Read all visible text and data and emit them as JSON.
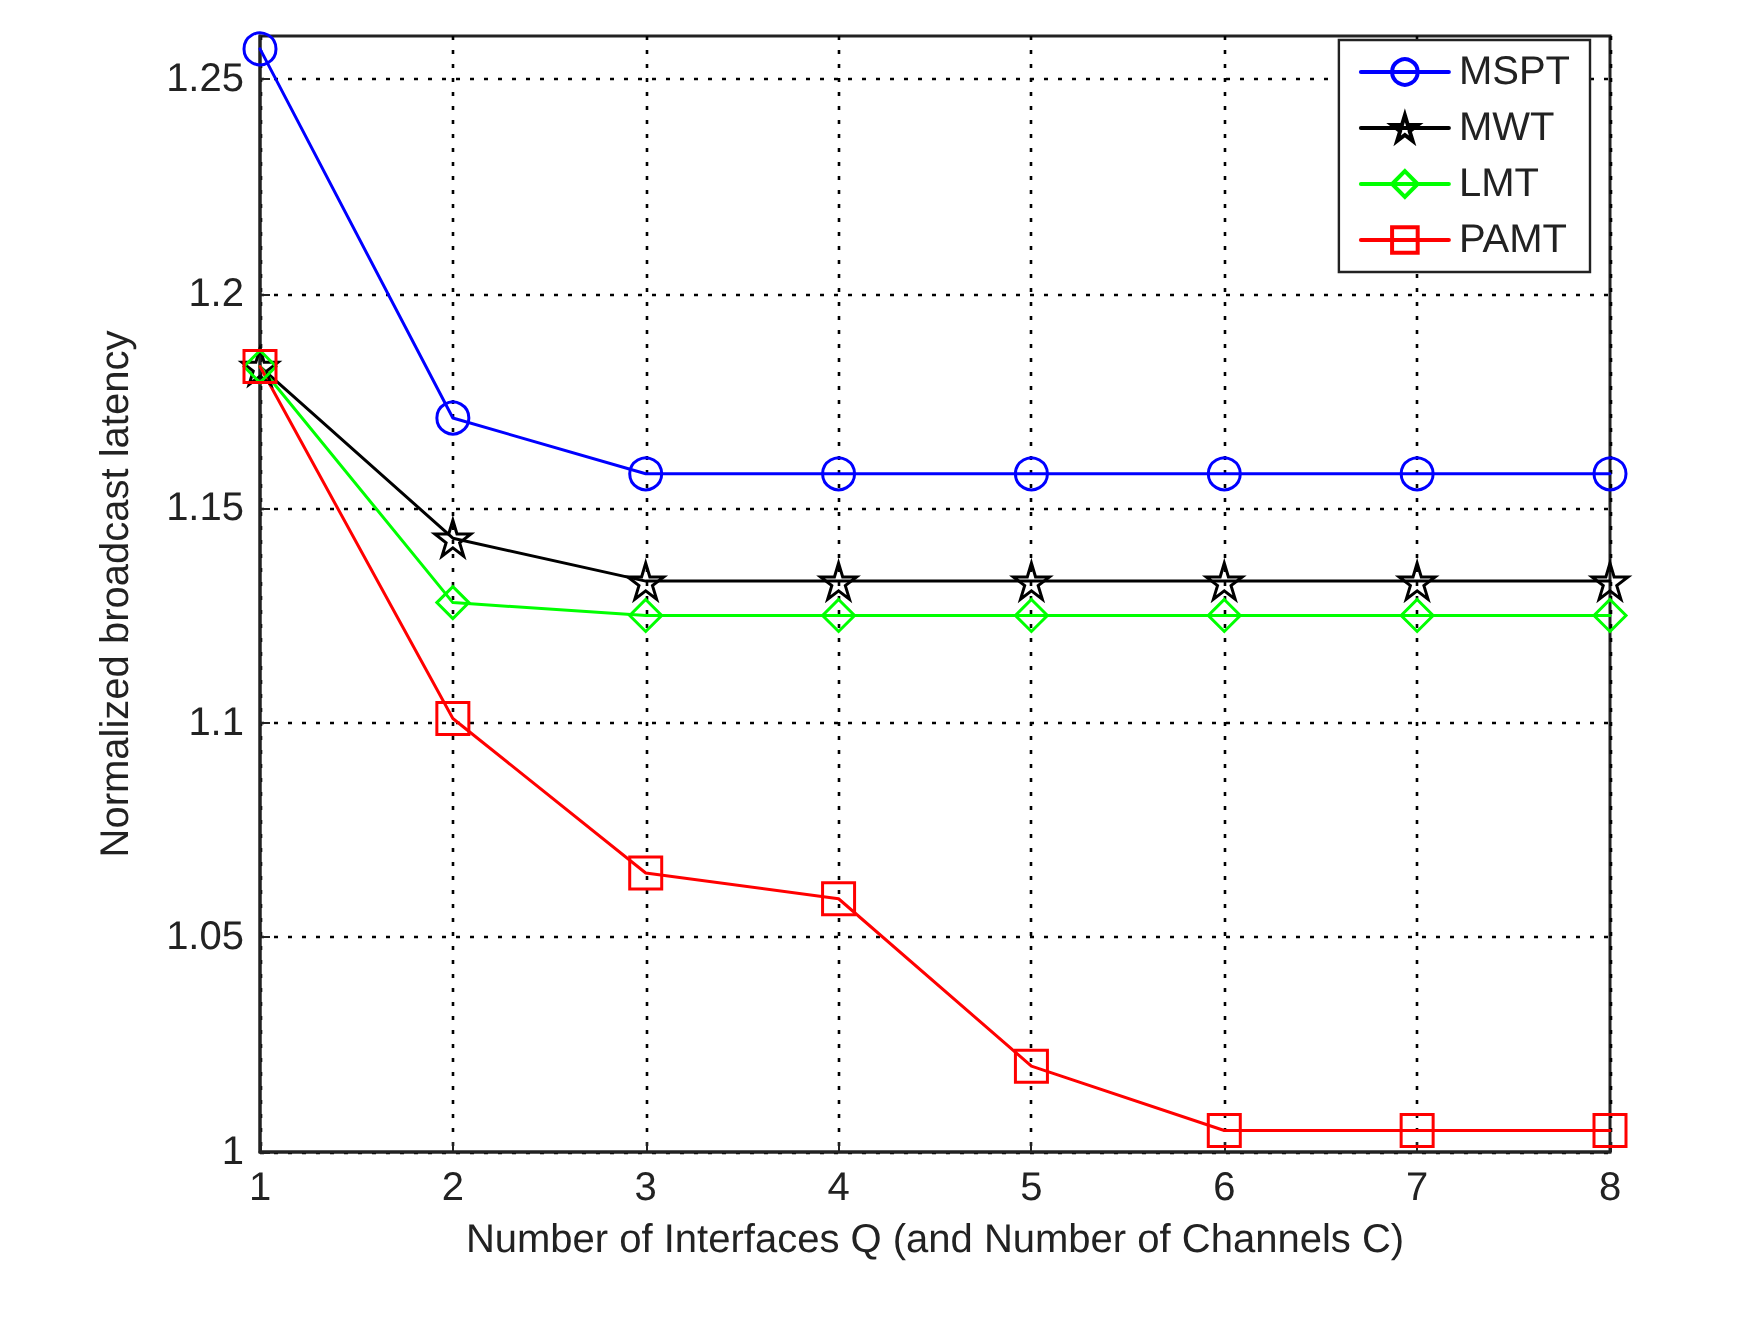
{
  "chart_data": {
    "type": "line",
    "xlabel": "Number of Interfaces Q (and Number of Channels C)",
    "ylabel": "Normalized broadcast latency",
    "x": [
      1,
      2,
      3,
      4,
      5,
      6,
      7,
      8
    ],
    "series": [
      {
        "name": "MSPT",
        "color": "#0000ff",
        "marker": "circle",
        "values": [
          1.257,
          1.171,
          1.158,
          1.158,
          1.158,
          1.158,
          1.158,
          1.158
        ]
      },
      {
        "name": "MWT",
        "color": "#000000",
        "marker": "star",
        "values": [
          1.183,
          1.143,
          1.133,
          1.133,
          1.133,
          1.133,
          1.133,
          1.133
        ]
      },
      {
        "name": "LMT",
        "color": "#00ff00",
        "marker": "diamond",
        "values": [
          1.183,
          1.128,
          1.125,
          1.125,
          1.125,
          1.125,
          1.125,
          1.125
        ]
      },
      {
        "name": "PAMT",
        "color": "#ff0000",
        "marker": "square",
        "values": [
          1.183,
          1.101,
          1.065,
          1.059,
          1.02,
          1.005,
          1.005,
          1.005
        ]
      }
    ],
    "xlim": [
      1,
      8
    ],
    "xticks": [
      1,
      2,
      3,
      4,
      5,
      6,
      7,
      8
    ],
    "ylim": [
      1,
      1.26
    ],
    "yticks": [
      1,
      1.05,
      1.1,
      1.15,
      1.2,
      1.25
    ],
    "grid": true,
    "legend": "top right",
    "line_style": "solid"
  }
}
